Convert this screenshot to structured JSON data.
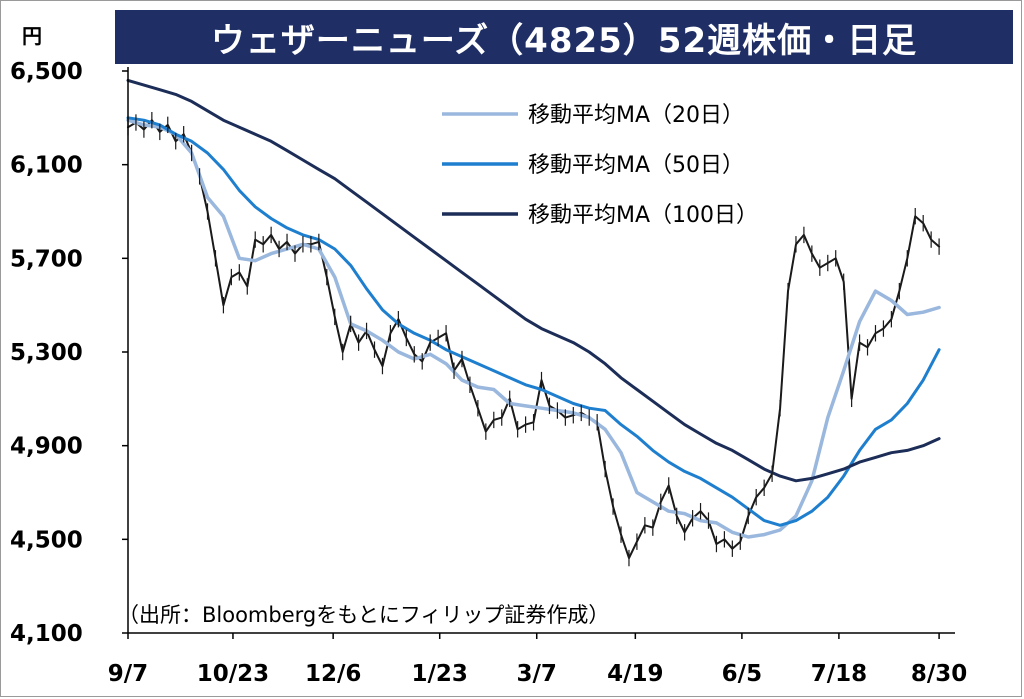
{
  "title": "ウェザーニューズ（4825）52週株価・日足",
  "currency_unit": "円",
  "source_note": "（出所：Bloombergをもとにフィリップ証券作成）",
  "colors": {
    "title_bg": "#1f2f66",
    "price": "#1a1a1a",
    "ma20": "#9ab7dd",
    "ma50": "#1f7fcf",
    "ma100": "#1c2d57",
    "axis": "#000000"
  },
  "chart_data": {
    "type": "line",
    "title": "ウェザーニューズ（4825）52週株価・日足",
    "ylabel": "円",
    "ylim": [
      4100,
      6500
    ],
    "yticks": [
      6500,
      6100,
      5700,
      5300,
      4900,
      4500,
      4100
    ],
    "ytick_labels": [
      "6,500",
      "6,100",
      "5,700",
      "5,300",
      "4,900",
      "4,500",
      "4,100"
    ],
    "xlim": [
      0,
      52
    ],
    "xticks": [
      {
        "label": "9/7",
        "x": 0
      },
      {
        "label": "10/23",
        "x": 6.6
      },
      {
        "label": "12/6",
        "x": 12.9
      },
      {
        "label": "1/23",
        "x": 19.6
      },
      {
        "label": "3/7",
        "x": 25.7
      },
      {
        "label": "4/19",
        "x": 31.9
      },
      {
        "label": "6/5",
        "x": 38.6
      },
      {
        "label": "7/18",
        "x": 44.7
      },
      {
        "label": "8/30",
        "x": 51
      }
    ],
    "grid": false,
    "legend": "top-right",
    "series": [
      {
        "name": "移動平均MA（20日）",
        "color": "#9ab7dd",
        "x": [
          0,
          1,
          2,
          3,
          4,
          5,
          6,
          7,
          8,
          9,
          10,
          11,
          12,
          13,
          14,
          15,
          16,
          17,
          18,
          19,
          20,
          21,
          22,
          23,
          24,
          25,
          26,
          27,
          28,
          29,
          30,
          31,
          32,
          33,
          34,
          35,
          36,
          37,
          38,
          39,
          40,
          41,
          42,
          43,
          44,
          45,
          46,
          47,
          48,
          49,
          50,
          51
        ],
        "values": [
          6290,
          6270,
          6260,
          6230,
          6150,
          5960,
          5880,
          5700,
          5690,
          5720,
          5740,
          5760,
          5740,
          5620,
          5420,
          5390,
          5350,
          5300,
          5270,
          5290,
          5250,
          5180,
          5150,
          5140,
          5080,
          5070,
          5060,
          5050,
          5040,
          5020,
          4970,
          4870,
          4700,
          4660,
          4620,
          4610,
          4580,
          4570,
          4530,
          4510,
          4520,
          4540,
          4600,
          4750,
          5020,
          5220,
          5430,
          5560,
          5520,
          5460,
          5470,
          5490
        ]
      },
      {
        "name": "移動平均MA（50日）",
        "color": "#1f7fcf",
        "x": [
          0,
          1,
          2,
          3,
          4,
          5,
          6,
          7,
          8,
          9,
          10,
          11,
          12,
          13,
          14,
          15,
          16,
          17,
          18,
          19,
          20,
          21,
          22,
          23,
          24,
          25,
          26,
          27,
          28,
          29,
          30,
          31,
          32,
          33,
          34,
          35,
          36,
          37,
          38,
          39,
          40,
          41,
          42,
          43,
          44,
          45,
          46,
          47,
          48,
          49,
          50,
          51
        ],
        "values": [
          6300,
          6290,
          6270,
          6230,
          6200,
          6150,
          6080,
          5990,
          5920,
          5870,
          5830,
          5800,
          5780,
          5740,
          5670,
          5570,
          5480,
          5420,
          5380,
          5350,
          5310,
          5280,
          5250,
          5220,
          5190,
          5160,
          5140,
          5110,
          5080,
          5060,
          5050,
          4990,
          4940,
          4880,
          4830,
          4790,
          4760,
          4720,
          4680,
          4630,
          4580,
          4560,
          4580,
          4620,
          4680,
          4770,
          4880,
          4970,
          5010,
          5080,
          5180,
          5310
        ]
      },
      {
        "name": "移動平均MA（100日）",
        "color": "#1c2d57",
        "x": [
          0,
          1,
          2,
          3,
          4,
          5,
          6,
          7,
          8,
          9,
          10,
          11,
          12,
          13,
          14,
          15,
          16,
          17,
          18,
          19,
          20,
          21,
          22,
          23,
          24,
          25,
          26,
          27,
          28,
          29,
          30,
          31,
          32,
          33,
          34,
          35,
          36,
          37,
          38,
          39,
          40,
          41,
          42,
          43,
          44,
          45,
          46,
          47,
          48,
          49,
          50,
          51
        ],
        "values": [
          6460,
          6440,
          6420,
          6400,
          6370,
          6330,
          6290,
          6260,
          6230,
          6200,
          6160,
          6120,
          6080,
          6040,
          5990,
          5940,
          5890,
          5840,
          5790,
          5740,
          5690,
          5640,
          5590,
          5540,
          5490,
          5440,
          5400,
          5370,
          5340,
          5300,
          5250,
          5190,
          5140,
          5090,
          5040,
          4990,
          4950,
          4910,
          4880,
          4840,
          4800,
          4770,
          4750,
          4760,
          4780,
          4800,
          4830,
          4850,
          4870,
          4880,
          4900,
          4930
        ]
      },
      {
        "name": "",
        "color": "#1a1a1a",
        "x": [
          0,
          0.5,
          1,
          1.5,
          2,
          2.5,
          3,
          3.5,
          4,
          4.5,
          5,
          5.5,
          6,
          6.5,
          7,
          7.5,
          8,
          8.5,
          9,
          9.5,
          10,
          10.5,
          11,
          11.5,
          12,
          12.5,
          13,
          13.5,
          14,
          14.5,
          15,
          15.5,
          16,
          16.5,
          17,
          17.5,
          18,
          18.5,
          19,
          19.5,
          20,
          20.5,
          21,
          21.5,
          22,
          22.5,
          23,
          23.5,
          24,
          24.5,
          25,
          25.5,
          26,
          26.5,
          27,
          27.5,
          28,
          28.5,
          29,
          29.5,
          30,
          30.5,
          31,
          31.5,
          32,
          32.5,
          33,
          33.5,
          34,
          34.5,
          35,
          35.5,
          36,
          36.5,
          37,
          37.5,
          38,
          38.5,
          39,
          39.5,
          40,
          40.5,
          41,
          41.5,
          42,
          42.5,
          43,
          43.5,
          44,
          44.5,
          45,
          45.5,
          46,
          46.5,
          47,
          47.5,
          48,
          48.5,
          49,
          49.5,
          50,
          50.5,
          51
        ],
        "values": [
          6260,
          6280,
          6250,
          6290,
          6240,
          6270,
          6200,
          6230,
          6150,
          6050,
          5900,
          5700,
          5500,
          5620,
          5640,
          5580,
          5780,
          5760,
          5800,
          5740,
          5770,
          5720,
          5760,
          5760,
          5770,
          5620,
          5450,
          5300,
          5420,
          5340,
          5390,
          5310,
          5240,
          5380,
          5440,
          5360,
          5290,
          5260,
          5340,
          5360,
          5380,
          5220,
          5270,
          5160,
          5060,
          4960,
          5010,
          5020,
          5100,
          4970,
          4990,
          5000,
          5180,
          5070,
          5050,
          5020,
          5030,
          5040,
          5020,
          5000,
          4800,
          4640,
          4520,
          4420,
          4490,
          4560,
          4550,
          4660,
          4730,
          4600,
          4530,
          4590,
          4620,
          4580,
          4480,
          4500,
          4460,
          4490,
          4600,
          4680,
          4720,
          4780,
          5060,
          5560,
          5760,
          5800,
          5720,
          5660,
          5680,
          5700,
          5600,
          5100,
          5340,
          5320,
          5380,
          5400,
          5440,
          5560,
          5700,
          5880,
          5850,
          5780,
          5750
        ]
      }
    ],
    "legend_entries": [
      {
        "label": "移動平均MA（20日）",
        "color": "#9ab7dd"
      },
      {
        "label": "移動平均MA（50日）",
        "color": "#1f7fcf"
      },
      {
        "label": "移動平均MA（100日）",
        "color": "#1c2d57"
      }
    ]
  }
}
